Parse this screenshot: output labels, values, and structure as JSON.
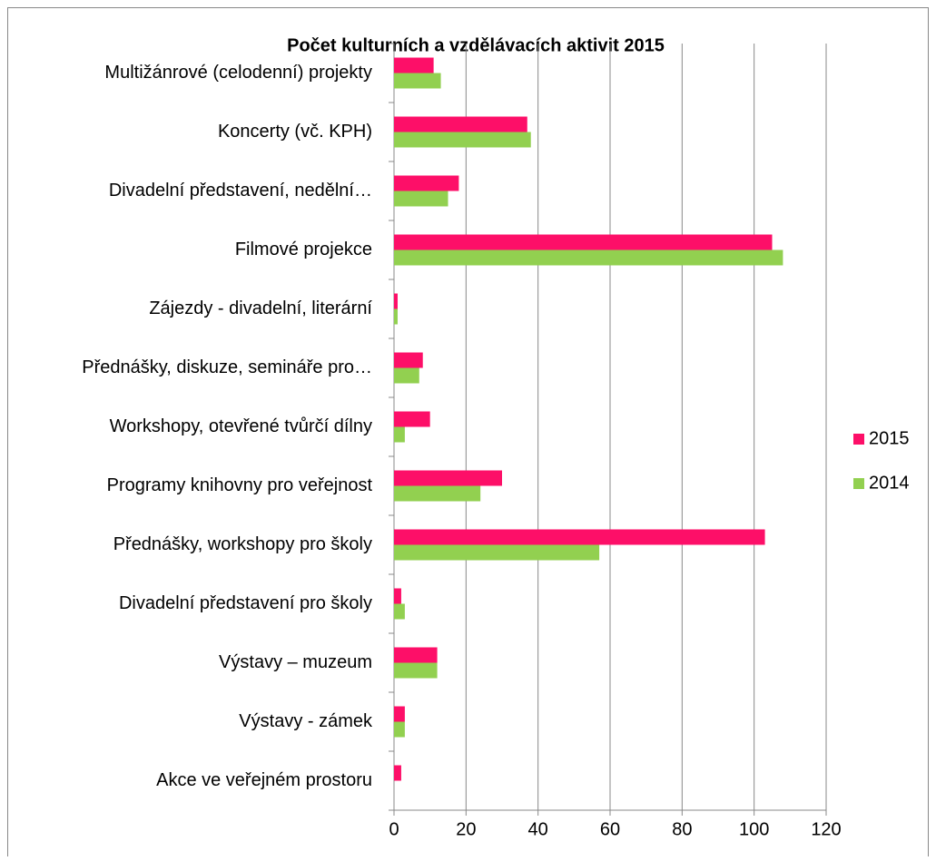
{
  "chart_data": {
    "type": "hbar",
    "title": "Počet kulturních a vzdělávacích aktivit 2015",
    "categories": [
      "Multižánrové (celodenní) projekty",
      "Koncerty (vč. KPH)",
      "Divadelní představení, nedělní…",
      "Filmové projekce",
      "Zájezdy - divadelní, literární",
      "Přednášky, diskuze, semináře pro…",
      "Workshopy, otevřené tvůrčí dílny",
      "Programy knihovny pro veřejnost",
      "Přednášky, workshopy pro školy",
      "Divadelní představení pro školy",
      "Výstavy – muzeum",
      "Výstavy - zámek",
      "Akce ve veřejném prostoru"
    ],
    "series": [
      {
        "name": "2015",
        "color": "#fd0f68",
        "values": [
          11,
          37,
          18,
          105,
          1,
          8,
          10,
          30,
          103,
          2,
          12,
          3,
          2
        ]
      },
      {
        "name": "2014",
        "color": "#92d050",
        "values": [
          13,
          38,
          15,
          108,
          1,
          7,
          3,
          24,
          57,
          3,
          12,
          3,
          0
        ]
      }
    ],
    "xlim": [
      0,
      120
    ],
    "xticks": [
      0,
      20,
      40,
      60,
      80,
      100,
      120
    ],
    "grid": true,
    "legend": "right"
  }
}
